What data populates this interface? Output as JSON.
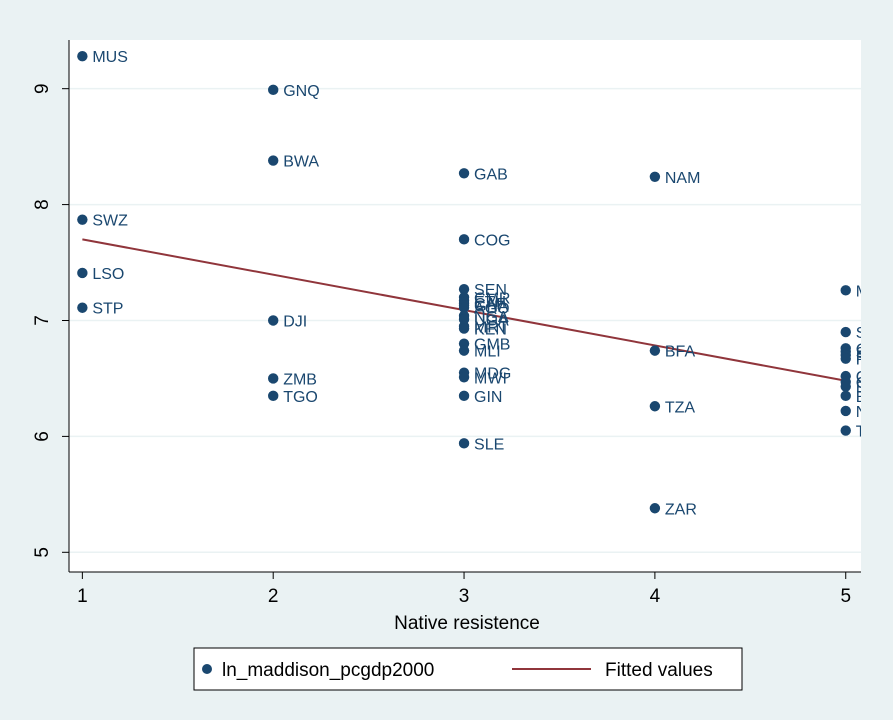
{
  "colors": {
    "background": "#eaf2f3",
    "plot_background": "#ffffff",
    "marker": "#1a476f",
    "fit_line": "#90353b",
    "grid": "#eaf2f3",
    "text": "#000000"
  },
  "chart_data": {
    "type": "scatter",
    "title": "",
    "xlabel": "Native resistence",
    "ylabel": "",
    "xlim": [
      0.93,
      5.08
    ],
    "ylim": [
      4.83,
      9.42
    ],
    "x_ticks": [
      1,
      2,
      3,
      4,
      5
    ],
    "y_ticks": [
      5,
      6,
      7,
      8,
      9
    ],
    "grid": true,
    "legend_position": "bottom",
    "series": [
      {
        "name": "ln_maddison_pcgdp2000",
        "kind": "scatter",
        "points": [
          {
            "label": "MUS",
            "x": 1,
            "y": 9.28
          },
          {
            "label": "SWZ",
            "x": 1,
            "y": 7.87
          },
          {
            "label": "LSO",
            "x": 1,
            "y": 7.41
          },
          {
            "label": "STP",
            "x": 1,
            "y": 7.11
          },
          {
            "label": "GNQ",
            "x": 2,
            "y": 8.99
          },
          {
            "label": "BWA",
            "x": 2,
            "y": 8.38
          },
          {
            "label": "DJI",
            "x": 2,
            "y": 7.0
          },
          {
            "label": "ZMB",
            "x": 2,
            "y": 6.5
          },
          {
            "label": "TGO",
            "x": 2,
            "y": 6.35
          },
          {
            "label": "GAB",
            "x": 3,
            "y": 8.27
          },
          {
            "label": "COG",
            "x": 3,
            "y": 7.7
          },
          {
            "label": "SEN",
            "x": 3,
            "y": 7.27
          },
          {
            "label": "CMR",
            "x": 3,
            "y": 7.2
          },
          {
            "label": "ETH",
            "x": 3,
            "y": 7.17
          },
          {
            "label": "CAF",
            "x": 3,
            "y": 7.15
          },
          {
            "label": "GHA",
            "x": 3,
            "y": 7.13
          },
          {
            "label": "AGO",
            "x": 3,
            "y": 7.11
          },
          {
            "label": "NGA",
            "x": 3,
            "y": 7.04
          },
          {
            "label": "UGA",
            "x": 3,
            "y": 7.01
          },
          {
            "label": "MRT",
            "x": 3,
            "y": 6.95
          },
          {
            "label": "KEN",
            "x": 3,
            "y": 6.93
          },
          {
            "label": "GMB",
            "x": 3,
            "y": 6.8
          },
          {
            "label": "MLI",
            "x": 3,
            "y": 6.74
          },
          {
            "label": "MDG",
            "x": 3,
            "y": 6.55
          },
          {
            "label": "MWI",
            "x": 3,
            "y": 6.51
          },
          {
            "label": "GIN",
            "x": 3,
            "y": 6.35
          },
          {
            "label": "SLE",
            "x": 3,
            "y": 5.94
          },
          {
            "label": "NAM",
            "x": 4,
            "y": 8.24
          },
          {
            "label": "BFA",
            "x": 4,
            "y": 6.74
          },
          {
            "label": "TZA",
            "x": 4,
            "y": 6.26
          },
          {
            "label": "ZAR",
            "x": 4,
            "y": 5.38
          },
          {
            "label": "MOZ",
            "x": 5,
            "y": 7.26
          },
          {
            "label": "SDN",
            "x": 5,
            "y": 6.9
          },
          {
            "label": "COM",
            "x": 5,
            "y": 6.76
          },
          {
            "label": "SOM",
            "x": 5,
            "y": 6.73
          },
          {
            "label": "RWA",
            "x": 5,
            "y": 6.7
          },
          {
            "label": "RCV",
            "x": 5,
            "y": 6.67
          },
          {
            "label": "GNB",
            "x": 5,
            "y": 6.52
          },
          {
            "label": "CIV",
            "x": 5,
            "y": 6.47
          },
          {
            "label": "ERI",
            "x": 5,
            "y": 6.43
          },
          {
            "label": "BDI",
            "x": 5,
            "y": 6.35
          },
          {
            "label": "NER",
            "x": 5,
            "y": 6.22
          },
          {
            "label": "TCD",
            "x": 5,
            "y": 6.05
          }
        ]
      },
      {
        "name": "Fitted values",
        "kind": "line",
        "points": [
          {
            "x": 1,
            "y": 7.7
          },
          {
            "x": 5,
            "y": 6.48
          }
        ]
      }
    ]
  }
}
